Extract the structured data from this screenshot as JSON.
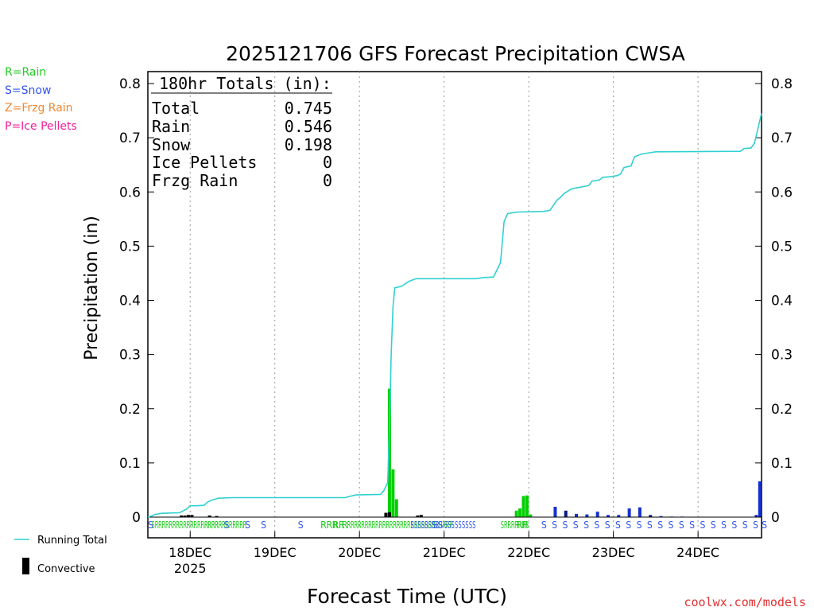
{
  "chart_data": {
    "type": "bar",
    "title": "2025121706 GFS Forecast Precipitation CWSA",
    "xlabel": "Forecast Time (UTC)",
    "ylabel": "Precipitation (in)",
    "ylim": [
      0,
      0.82
    ],
    "y_ticks": [
      0,
      0.1,
      0.2,
      0.3,
      0.4,
      0.5,
      0.6,
      0.7,
      0.8
    ],
    "y_tick_labels": [
      "0",
      "0.1",
      "0.2",
      "0.3",
      "0.4",
      "0.5",
      "0.6",
      "0.7",
      "0.8"
    ],
    "x_range_hours": [
      6,
      180
    ],
    "x_ticks": [
      {
        "hour": 18,
        "label": "18DEC",
        "sublabel": "2025"
      },
      {
        "hour": 42,
        "label": "19DEC",
        "sublabel": ""
      },
      {
        "hour": 66,
        "label": "20DEC",
        "sublabel": ""
      },
      {
        "hour": 90,
        "label": "21DEC",
        "sublabel": ""
      },
      {
        "hour": 114,
        "label": "22DEC",
        "sublabel": ""
      },
      {
        "hour": 138,
        "label": "23DEC",
        "sublabel": ""
      },
      {
        "hour": 162,
        "label": "24DEC",
        "sublabel": ""
      }
    ],
    "totals": {
      "heading": "180hr Totals (in):",
      "rows": [
        {
          "label": "Total",
          "value": "0.745"
        },
        {
          "label": "Rain",
          "value": "0.546"
        },
        {
          "label": "Snow",
          "value": "0.198"
        },
        {
          "label": "Ice Pellets",
          "value": "0"
        },
        {
          "label": "Frzg Rain",
          "value": "0"
        }
      ]
    },
    "ptype_legend": [
      {
        "text": "R=Rain",
        "color": "#22cc22"
      },
      {
        "text": "S=Snow",
        "color": "#3355ee"
      },
      {
        "text": "Z=Frzg Rain",
        "color": "#ee8833"
      },
      {
        "text": "P=Ice Pellets",
        "color": "#ee2299"
      }
    ],
    "series_legend": {
      "running_total": "Running Total",
      "convective": "Convective"
    },
    "colors": {
      "rain": "#00d000",
      "snow": "#1530d0",
      "snow_dark": "#0a1c80",
      "running_total": "#30d0d0",
      "convective": "#000000",
      "rain_text": "#22cc22",
      "snow_text": "#3355ee"
    },
    "running_total": [
      [
        6,
        0
      ],
      [
        7,
        0.002
      ],
      [
        8,
        0.005
      ],
      [
        10,
        0.007
      ],
      [
        15,
        0.008
      ],
      [
        17,
        0.015
      ],
      [
        18,
        0.021
      ],
      [
        20,
        0.021
      ],
      [
        22,
        0.022
      ],
      [
        23,
        0.028
      ],
      [
        24,
        0.031
      ],
      [
        26,
        0.035
      ],
      [
        30,
        0.036
      ],
      [
        48,
        0.036
      ],
      [
        62,
        0.036
      ],
      [
        63,
        0.038
      ],
      [
        65,
        0.041
      ],
      [
        72,
        0.042
      ],
      [
        73,
        0.05
      ],
      [
        74,
        0.064
      ],
      [
        74.5,
        0.16
      ],
      [
        75,
        0.3
      ],
      [
        75.5,
        0.388
      ],
      [
        76,
        0.423
      ],
      [
        78,
        0.426
      ],
      [
        80,
        0.435
      ],
      [
        82,
        0.44
      ],
      [
        97,
        0.44
      ],
      [
        99,
        0.44
      ],
      [
        101,
        0.442
      ],
      [
        104,
        0.443
      ],
      [
        106,
        0.47
      ],
      [
        107,
        0.545
      ],
      [
        108,
        0.56
      ],
      [
        111,
        0.563
      ],
      [
        118,
        0.564
      ],
      [
        120,
        0.566
      ],
      [
        122,
        0.585
      ],
      [
        123,
        0.59
      ],
      [
        124,
        0.597
      ],
      [
        126,
        0.605
      ],
      [
        127,
        0.607
      ],
      [
        128,
        0.608
      ],
      [
        131,
        0.612
      ],
      [
        132,
        0.62
      ],
      [
        134,
        0.622
      ],
      [
        135,
        0.627
      ],
      [
        137,
        0.628
      ],
      [
        139,
        0.63
      ],
      [
        140,
        0.633
      ],
      [
        141,
        0.645
      ],
      [
        143,
        0.648
      ],
      [
        144,
        0.665
      ],
      [
        146,
        0.67
      ],
      [
        149,
        0.673
      ],
      [
        150,
        0.674
      ],
      [
        174,
        0.675
      ],
      [
        175,
        0.68
      ],
      [
        177,
        0.681
      ],
      [
        178,
        0.69
      ],
      [
        180,
        0.745
      ]
    ],
    "bars": [
      {
        "hour": 74.5,
        "value": 0.237,
        "type": "rain"
      },
      {
        "hour": 75.5,
        "value": 0.088,
        "type": "rain"
      },
      {
        "hour": 76.5,
        "value": 0.033,
        "type": "rain"
      },
      {
        "hour": 110.5,
        "value": 0.012,
        "type": "rain"
      },
      {
        "hour": 111.5,
        "value": 0.016,
        "type": "rain"
      },
      {
        "hour": 112.5,
        "value": 0.039,
        "type": "rain"
      },
      {
        "hour": 113.5,
        "value": 0.04,
        "type": "rain"
      },
      {
        "hour": 114.5,
        "value": 0.005,
        "type": "rain"
      },
      {
        "hour": 121.5,
        "value": 0.019,
        "type": "snow"
      },
      {
        "hour": 124.5,
        "value": 0.012,
        "type": "snow_dark"
      },
      {
        "hour": 127.5,
        "value": 0.006,
        "type": "snow"
      },
      {
        "hour": 130.5,
        "value": 0.005,
        "type": "snow"
      },
      {
        "hour": 133.5,
        "value": 0.01,
        "type": "snow"
      },
      {
        "hour": 136.5,
        "value": 0.004,
        "type": "snow"
      },
      {
        "hour": 139.5,
        "value": 0.004,
        "type": "snow"
      },
      {
        "hour": 142.5,
        "value": 0.016,
        "type": "snow"
      },
      {
        "hour": 145.5,
        "value": 0.018,
        "type": "snow"
      },
      {
        "hour": 148.5,
        "value": 0.004,
        "type": "snow_dark"
      },
      {
        "hour": 151.5,
        "value": 0.002,
        "type": "snow"
      },
      {
        "hour": 154.5,
        "value": 0.001,
        "type": "snow"
      },
      {
        "hour": 157.5,
        "value": 0.001,
        "type": "snow"
      },
      {
        "hour": 178.5,
        "value": 0.004,
        "type": "snow"
      },
      {
        "hour": 179.5,
        "value": 0.066,
        "type": "snow"
      }
    ],
    "convective_bars": [
      {
        "hour": 15.5,
        "value": 0.003
      },
      {
        "hour": 16.5,
        "value": 0.003
      },
      {
        "hour": 17.5,
        "value": 0.004
      },
      {
        "hour": 18.5,
        "value": 0.004
      },
      {
        "hour": 23.5,
        "value": 0.003
      },
      {
        "hour": 25.5,
        "value": 0.002
      },
      {
        "hour": 73.5,
        "value": 0.008
      },
      {
        "hour": 74.5,
        "value": 0.009
      },
      {
        "hour": 82.5,
        "value": 0.003
      },
      {
        "hour": 83.5,
        "value": 0.004
      }
    ],
    "ptype_labels": [
      {
        "hour": 6,
        "text": "S",
        "type": "snow"
      },
      {
        "hour": 7,
        "text": "SRRRRRRRRRRRRRRRRRR",
        "type": "rain"
      },
      {
        "hour": 22,
        "text": "RRRRRRRRRRRR",
        "type": "rain"
      },
      {
        "hour": 27.5,
        "text": "S",
        "type": "snow"
      },
      {
        "hour": 33.5,
        "text": "S",
        "type": "snow"
      },
      {
        "hour": 38,
        "text": "S",
        "type": "snow"
      },
      {
        "hour": 48.5,
        "text": "S",
        "type": "snow"
      },
      {
        "hour": 55,
        "text": "RRR",
        "type": "rain"
      },
      {
        "hour": 58.5,
        "text": "RR",
        "type": "rain"
      },
      {
        "hour": 61,
        "text": "R",
        "type": "rain"
      },
      {
        "hour": 62.5,
        "text": "RRRRRRRRRRRRRRRRRRRRRRRRRRRRRR",
        "type": "rain"
      },
      {
        "hour": 80.5,
        "text": "SSSSSSSS",
        "type": "snow"
      },
      {
        "hour": 86.5,
        "text": "SS",
        "type": "snow"
      },
      {
        "hour": 90,
        "text": "SSSSSSSSS",
        "type": "snow"
      },
      {
        "hour": 106,
        "text": "SRRRRRRR",
        "type": "rain"
      },
      {
        "hour": 110.5,
        "text": "RR",
        "type": "rain"
      },
      {
        "hour": 117.5,
        "text": "S",
        "type": "snow"
      },
      {
        "hour": 120.5,
        "text": "S",
        "type": "snow"
      },
      {
        "hour": 123.5,
        "text": "S",
        "type": "snow"
      },
      {
        "hour": 126.5,
        "text": "S",
        "type": "snow"
      },
      {
        "hour": 129.5,
        "text": "S",
        "type": "snow"
      },
      {
        "hour": 132.5,
        "text": "S",
        "type": "snow"
      },
      {
        "hour": 135.5,
        "text": "S",
        "type": "snow"
      },
      {
        "hour": 138.5,
        "text": "S",
        "type": "snow"
      },
      {
        "hour": 141.5,
        "text": "S",
        "type": "snow"
      },
      {
        "hour": 144.5,
        "text": "S",
        "type": "snow"
      },
      {
        "hour": 147.5,
        "text": "S",
        "type": "snow"
      },
      {
        "hour": 150.5,
        "text": "S",
        "type": "snow"
      },
      {
        "hour": 153.5,
        "text": "S",
        "type": "snow"
      },
      {
        "hour": 156.5,
        "text": "S",
        "type": "snow"
      },
      {
        "hour": 159.5,
        "text": "S",
        "type": "snow"
      },
      {
        "hour": 162.5,
        "text": "S",
        "type": "snow"
      },
      {
        "hour": 165.5,
        "text": "S",
        "type": "snow"
      },
      {
        "hour": 168.5,
        "text": "S",
        "type": "snow"
      },
      {
        "hour": 171.5,
        "text": "S",
        "type": "snow"
      },
      {
        "hour": 174.5,
        "text": "S",
        "type": "snow"
      },
      {
        "hour": 177.5,
        "text": "S",
        "type": "snow"
      },
      {
        "hour": 180,
        "text": "S",
        "type": "snow"
      }
    ],
    "credit": "coolwx.com/models"
  }
}
